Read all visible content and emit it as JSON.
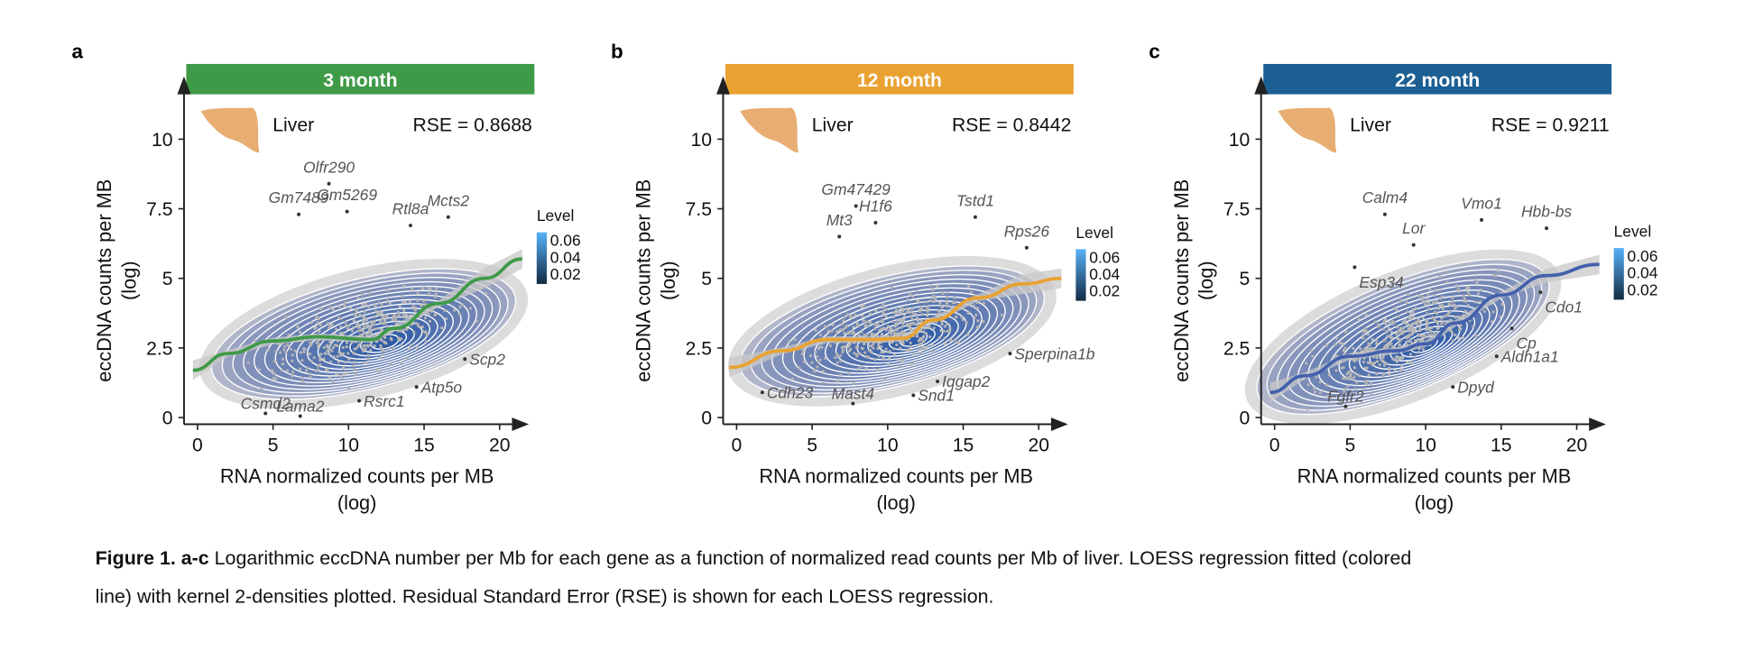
{
  "caption": {
    "bold": "Figure 1. a-c",
    "line1": " Logarithmic eccDNA number per Mb for each gene as a function of normalized read counts per Mb of liver. LOESS regression fitted (colored",
    "line2": "line) with kernel 2-densities plotted. Residual Standard Error (RSE) is shown for each LOESS regression."
  },
  "chart_data": [
    {
      "type": "scatter",
      "panel": "a",
      "title": "3 month",
      "banner_color": "#3f9a47",
      "line_color": "#3f9a47",
      "tissue": "Liver",
      "rse_label": "RSE = 0.8688",
      "xlabel": [
        "RNA normalized counts per MB",
        "(log)"
      ],
      "ylabel": [
        "eccDNA counts per MB",
        "(log)"
      ],
      "xticks": [
        "0",
        "5",
        "10",
        "15",
        "20"
      ],
      "yticks": [
        "0",
        "2.5",
        "5",
        "7.5",
        "10"
      ],
      "xlim": [
        -0.5,
        21.5
      ],
      "ylim": [
        0,
        10.5
      ],
      "legend": {
        "title": "Level",
        "ticks": [
          "0.06",
          "0.04",
          "0.02"
        ]
      },
      "density_peak": [
        12.5,
        2.7
      ],
      "loess": [
        [
          -0.3,
          1.7
        ],
        [
          2,
          2.3
        ],
        [
          5,
          2.75
        ],
        [
          8,
          2.9
        ],
        [
          11.5,
          2.8
        ],
        [
          13,
          3.2
        ],
        [
          16,
          4.1
        ],
        [
          19,
          5.0
        ],
        [
          21.5,
          5.7
        ]
      ],
      "labeled_points": [
        {
          "gene": "Olfr290",
          "x": 8.7,
          "y": 8.4
        },
        {
          "gene": "Gm7489",
          "x": 6.7,
          "y": 7.3
        },
        {
          "gene": "Gm5269",
          "x": 9.9,
          "y": 7.4
        },
        {
          "gene": "Mcts2",
          "x": 16.6,
          "y": 7.2
        },
        {
          "gene": "Rtl8a",
          "x": 14.1,
          "y": 6.9
        },
        {
          "gene": "Scp2",
          "x": 17.7,
          "y": 2.1
        },
        {
          "gene": "Atp5o",
          "x": 14.5,
          "y": 1.1
        },
        {
          "gene": "Rsrc1",
          "x": 10.7,
          "y": 0.6
        },
        {
          "gene": "Csmd2",
          "x": 4.5,
          "y": 0.15
        },
        {
          "gene": "Lama2",
          "x": 6.8,
          "y": 0.05
        }
      ]
    },
    {
      "type": "scatter",
      "panel": "b",
      "title": "12 month",
      "banner_color": "#e9a232",
      "line_color": "#e9a232",
      "tissue": "Liver",
      "rse_label": "RSE = 0.8442",
      "xlabel": [
        "RNA normalized counts per MB",
        "(log)"
      ],
      "ylabel": [
        "eccDNA counts per MB",
        "(log)"
      ],
      "xticks": [
        "0",
        "5",
        "10",
        "15",
        "20"
      ],
      "yticks": [
        "0",
        "2.5",
        "5",
        "7.5",
        "10"
      ],
      "xlim": [
        -0.5,
        21.5
      ],
      "ylim": [
        0,
        10.5
      ],
      "legend": {
        "title": "Level",
        "ticks": [
          "0.06",
          "0.04",
          "0.02"
        ]
      },
      "density_peak": [
        11.8,
        2.8
      ],
      "loess": [
        [
          -0.5,
          1.8
        ],
        [
          3,
          2.4
        ],
        [
          6,
          2.8
        ],
        [
          9,
          2.8
        ],
        [
          11,
          2.85
        ],
        [
          13,
          3.5
        ],
        [
          16,
          4.3
        ],
        [
          19,
          4.8
        ],
        [
          21.5,
          5.0
        ]
      ],
      "labeled_points": [
        {
          "gene": "Gm47429",
          "x": 7.9,
          "y": 7.6
        },
        {
          "gene": "H1f6",
          "x": 9.2,
          "y": 7.0
        },
        {
          "gene": "Mt3",
          "x": 6.8,
          "y": 6.5
        },
        {
          "gene": "Tstd1",
          "x": 15.8,
          "y": 7.2
        },
        {
          "gene": "Rps26",
          "x": 19.2,
          "y": 6.1
        },
        {
          "gene": "Sperpina1b",
          "x": 18.1,
          "y": 2.3
        },
        {
          "gene": "Iqgap2",
          "x": 13.3,
          "y": 1.3
        },
        {
          "gene": "Snd1",
          "x": 11.7,
          "y": 0.8
        },
        {
          "gene": "Mast4",
          "x": 7.7,
          "y": 0.5
        },
        {
          "gene": "Cdh23",
          "x": 1.7,
          "y": 0.9
        }
      ]
    },
    {
      "type": "scatter",
      "panel": "c",
      "title": "22 month",
      "banner_color": "#1c5f93",
      "line_color": "#4361ad",
      "tissue": "Liver",
      "rse_label": "RSE = 0.9211",
      "xlabel": [
        "RNA normalized counts per MB",
        "(log)"
      ],
      "ylabel": [
        "eccDNA counts per MB",
        "(log)"
      ],
      "xticks": [
        "0",
        "5",
        "10",
        "15",
        "20"
      ],
      "yticks": [
        "0",
        "2.5",
        "5",
        "7.5",
        "10"
      ],
      "xlim": [
        -0.5,
        21.5
      ],
      "ylim": [
        0,
        10.5
      ],
      "legend": {
        "title": "Level",
        "ticks": [
          "0.06",
          "0.04",
          "0.02"
        ]
      },
      "density_peak": [
        10,
        2.6
      ],
      "loess": [
        [
          -0.3,
          0.9
        ],
        [
          2,
          1.5
        ],
        [
          5,
          2.2
        ],
        [
          8,
          2.4
        ],
        [
          10,
          2.65
        ],
        [
          12,
          3.4
        ],
        [
          15,
          4.4
        ],
        [
          18,
          5.1
        ],
        [
          21.5,
          5.5
        ]
      ],
      "labeled_points": [
        {
          "gene": "Calm4",
          "x": 7.3,
          "y": 7.3
        },
        {
          "gene": "Vmo1",
          "x": 13.7,
          "y": 7.1
        },
        {
          "gene": "Hbb-bs",
          "x": 18.0,
          "y": 6.8
        },
        {
          "gene": "Lor",
          "x": 9.2,
          "y": 6.2
        },
        {
          "gene": "Esp34",
          "x": 5.3,
          "y": 5.4
        },
        {
          "gene": "Cdo1",
          "x": 17.6,
          "y": 4.5
        },
        {
          "gene": "Cp",
          "x": 15.7,
          "y": 3.2
        },
        {
          "gene": "Aldh1a1",
          "x": 14.7,
          "y": 2.2
        },
        {
          "gene": "Dpyd",
          "x": 11.8,
          "y": 1.1
        },
        {
          "gene": "Fgfr2",
          "x": 4.7,
          "y": 0.4
        }
      ]
    }
  ]
}
